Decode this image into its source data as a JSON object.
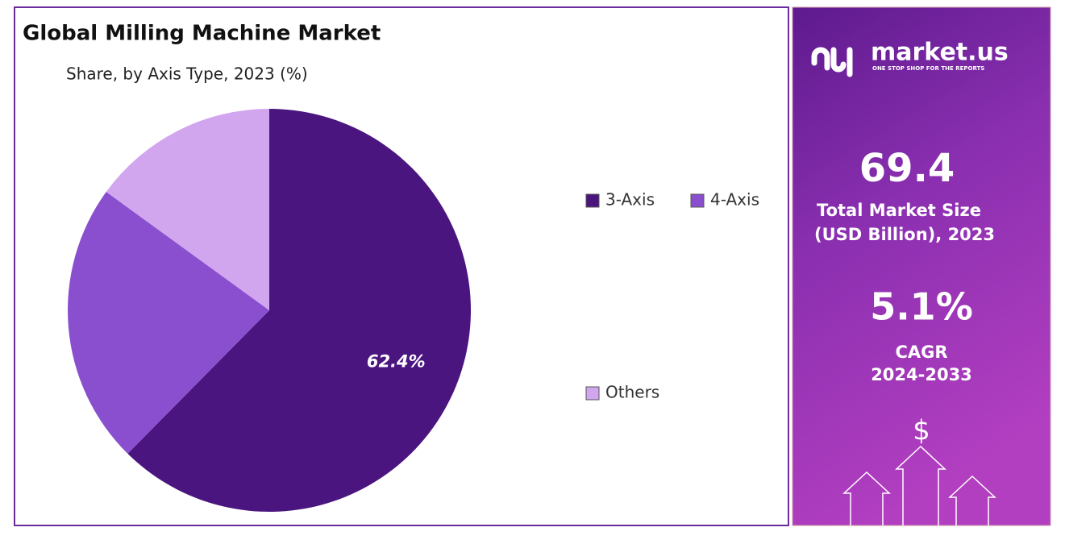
{
  "chart_data": {
    "type": "pie",
    "title": "Global Milling Machine Market",
    "subtitle": "Share, by Axis Type, 2023 (%)",
    "categories": [
      "3-Axis",
      "4-Axis",
      "Others"
    ],
    "values": [
      62.4,
      22.6,
      15.0
    ],
    "value_labels": [
      "62.4%",
      null,
      null
    ],
    "colors": [
      "#4b1580",
      "#8a4fcf",
      "#d2a6ee"
    ]
  },
  "side_panel": {
    "brand": "market.us",
    "tagline": "ONE STOP SHOP FOR THE REPORTS",
    "market_size": 69.4,
    "market_size_label_1": "Total Market Size",
    "market_size_label_2": "(USD Billion), 2023",
    "cagr": "5.1%",
    "cagr_label_1": "CAGR",
    "cagr_label_2": "2024-2033",
    "icon": "$"
  }
}
